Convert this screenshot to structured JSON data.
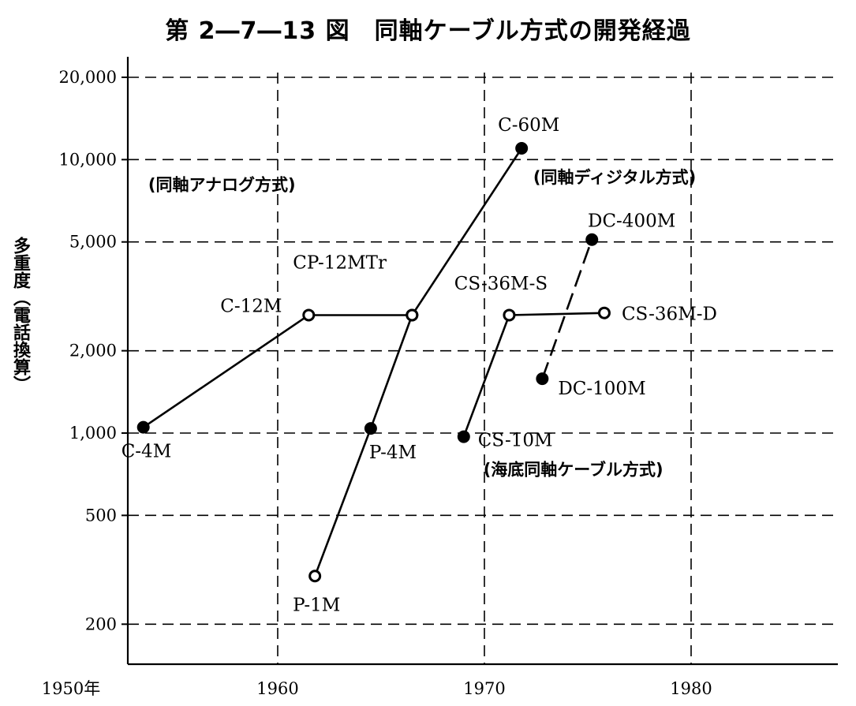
{
  "chart_data": {
    "type": "line",
    "title": "第 2―7―13 図　同軸ケーブル方式の開発経過",
    "ylabel": "多重度（電話換算）",
    "xlabel": "",
    "y_scale": "log",
    "ylim": [
      150,
      25000
    ],
    "xlim": [
      1946,
      1987
    ],
    "grid": true,
    "y_ticks": [
      {
        "value": 20000,
        "label": "20,000"
      },
      {
        "value": 10000,
        "label": "10,000"
      },
      {
        "value": 5000,
        "label": "5,000"
      },
      {
        "value": 2000,
        "label": "2,000"
      },
      {
        "value": 1000,
        "label": "1,000"
      },
      {
        "value": 500,
        "label": "500"
      },
      {
        "value": 200,
        "label": "200"
      }
    ],
    "x_ticks": [
      {
        "value": 1950,
        "label": "1950年"
      },
      {
        "value": 1960,
        "label": "1960"
      },
      {
        "value": 1970,
        "label": "1970"
      },
      {
        "value": 1980,
        "label": "1980"
      }
    ],
    "series": [
      {
        "style": "solid",
        "points": [
          {
            "x": 1953.5,
            "y": 1050,
            "label": "C-4M"
          },
          {
            "x": 1961.5,
            "y": 2700,
            "label": "C-12M"
          },
          {
            "x": 1966.5,
            "y": 2700,
            "label": ""
          },
          {
            "x": 1971.8,
            "y": 11000,
            "label": "C-60M"
          }
        ]
      },
      {
        "style": "solid",
        "points": [
          {
            "x": 1961.8,
            "y": 300,
            "label": "P-1M"
          },
          {
            "x": 1964.5,
            "y": 1040,
            "label": "P-4M"
          },
          {
            "x": 1966.5,
            "y": 2700,
            "label": ""
          }
        ]
      },
      {
        "style": "solid",
        "points": [
          {
            "x": 1969.0,
            "y": 970,
            "label": "CS-10M"
          },
          {
            "x": 1971.2,
            "y": 2700,
            "label": ""
          },
          {
            "x": 1975.8,
            "y": 2750,
            "label": "CS-36M-D"
          }
        ]
      },
      {
        "style": "dashed",
        "points": [
          {
            "x": 1972.8,
            "y": 1580,
            "label": "DC-100M"
          },
          {
            "x": 1975.2,
            "y": 5100,
            "label": "DC-400M"
          }
        ]
      }
    ],
    "annotations": [
      {
        "text": "(同軸アナログ方式)",
        "x": 1957.3,
        "y": 7700
      },
      {
        "text": "(同軸ディジタル方式)",
        "x": 1976.3,
        "y": 8200
      },
      {
        "text": "(海底同軸ケーブル方式)",
        "x": 1974.3,
        "y": 700
      },
      {
        "text": "CP-12MTr",
        "x": 1963.0,
        "y": 4000
      },
      {
        "text": "CS-36M-S",
        "x": 1970.8,
        "y": 3350
      }
    ]
  }
}
